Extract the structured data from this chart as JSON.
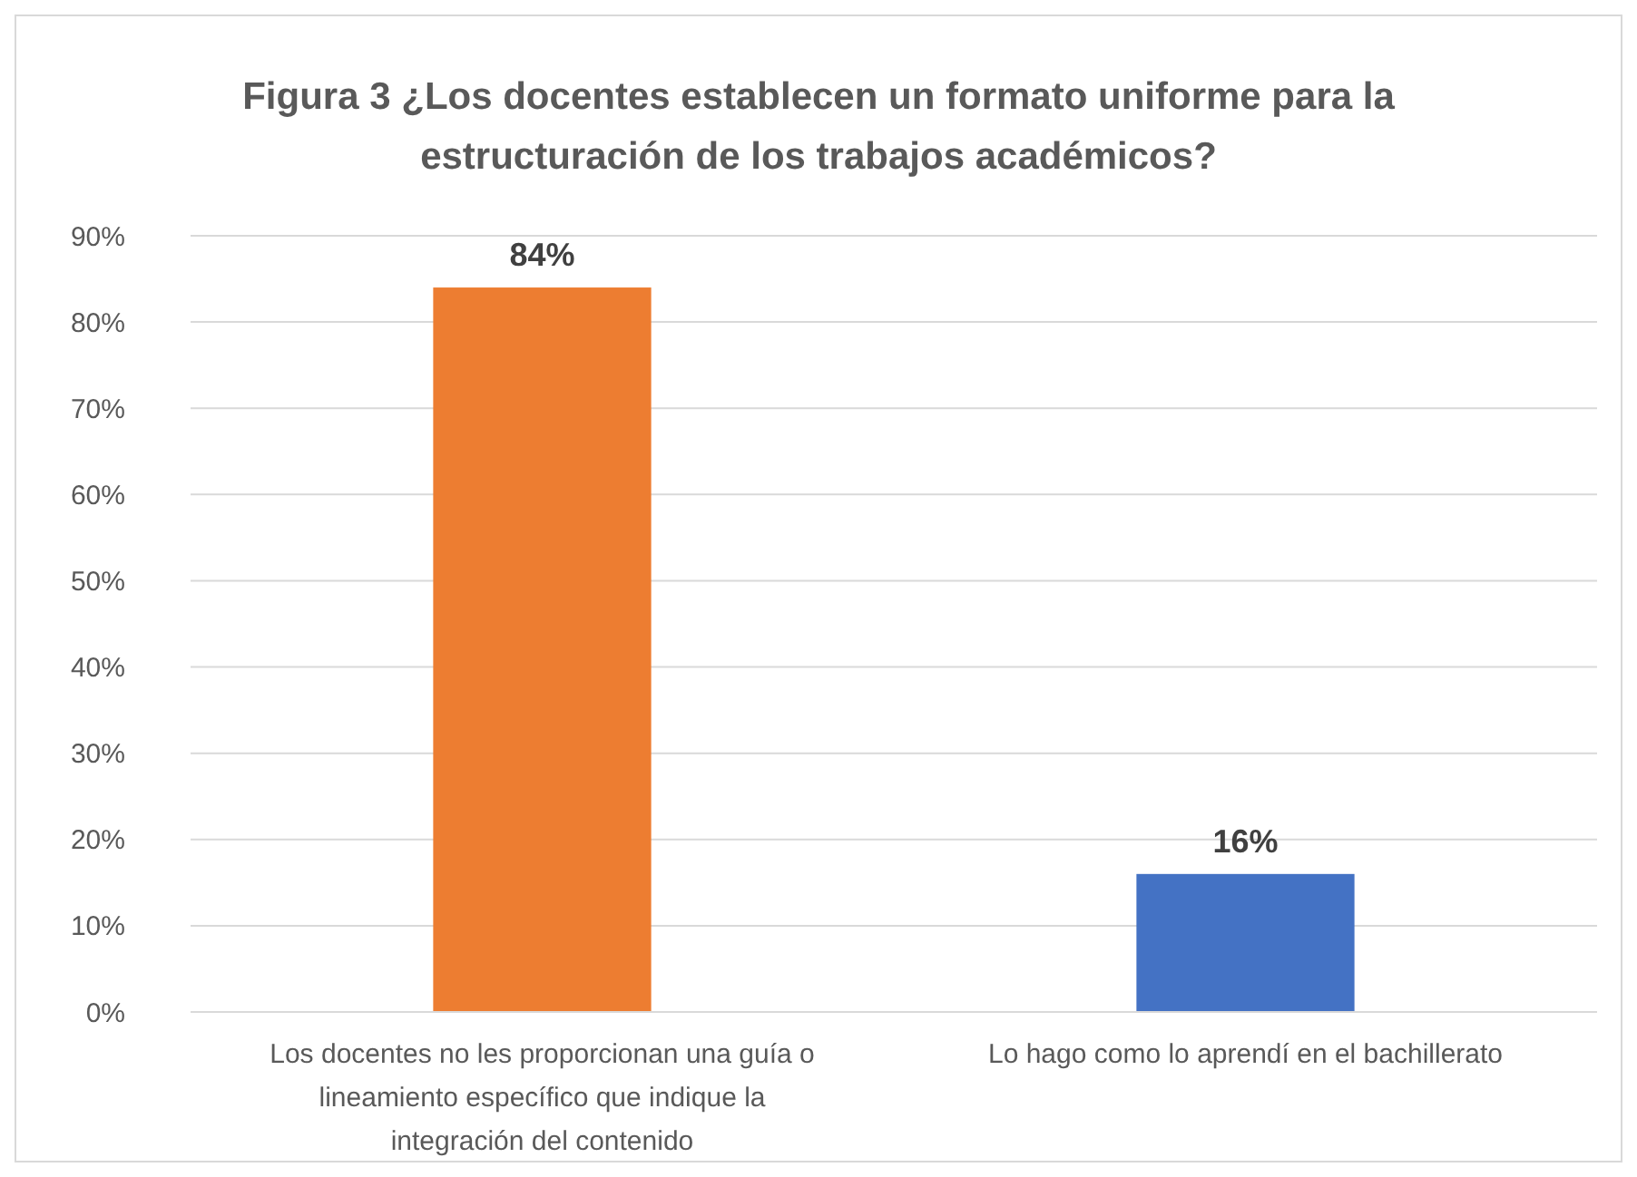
{
  "chart_data": {
    "type": "bar",
    "title": "Figura 3 ¿Los docentes establecen un formato uniforme para la estructuración de los trabajos académicos?",
    "categories": [
      "Los docentes no les proporcionan una guía o lineamiento específico que indique la integración del contenido",
      "Lo hago como lo aprendí en el bachillerato"
    ],
    "values": [
      84,
      16
    ],
    "colors": [
      "#ed7d31",
      "#4472c4"
    ],
    "value_labels": [
      "84%",
      "16%"
    ],
    "ylim": [
      0,
      90
    ],
    "yticks": [
      {
        "value": 0,
        "label": "0%"
      },
      {
        "value": 10,
        "label": "10%"
      },
      {
        "value": 20,
        "label": "20%"
      },
      {
        "value": 30,
        "label": "30%"
      },
      {
        "value": 40,
        "label": "40%"
      },
      {
        "value": 50,
        "label": "50%"
      },
      {
        "value": 60,
        "label": "60%"
      },
      {
        "value": 70,
        "label": "70%"
      },
      {
        "value": 80,
        "label": "80%"
      },
      {
        "value": 90,
        "label": "90%"
      }
    ],
    "grid": true
  }
}
